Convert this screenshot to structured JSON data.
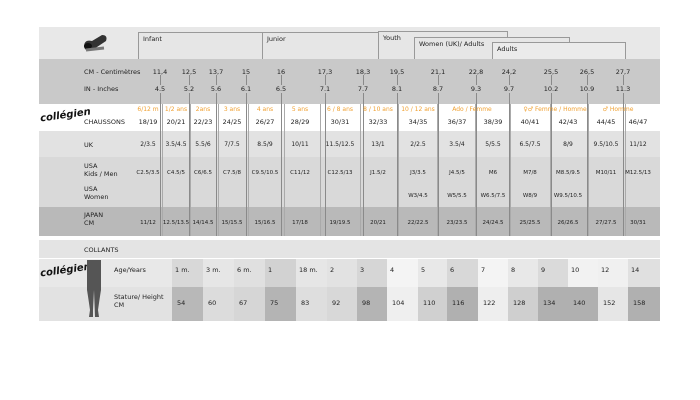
{
  "header": {
    "tabs": [
      "Infant",
      "Junior",
      "Youth",
      "Women (UK)/ Adults",
      "Adults"
    ]
  },
  "brand": {
    "logo_text": "collégien"
  },
  "rows": {
    "cm_label": "CM - Centimètres",
    "in_label": "IN - Inches",
    "chaussons_label": "CHAUSSONS",
    "uk_label": "UK",
    "usa_kids_label": [
      "USA",
      "Kids / Men"
    ],
    "usa_women_label": [
      "USA",
      "Women"
    ],
    "japan_label": [
      "JAPAN",
      "CM"
    ]
  },
  "cm": [
    "11,4",
    "12,5",
    "13,7",
    "15",
    "16",
    "17,3",
    "18,3",
    "19,5",
    "21,1",
    "22,8",
    "24,2",
    "25,5",
    "26,5",
    "27,7"
  ],
  "inches": [
    "4.5",
    "5.2",
    "5.6",
    "6.1",
    "6.5",
    "7.1",
    "7.7",
    "8.1",
    "8.7",
    "9.3",
    "9.7",
    "10.2",
    "10.9",
    "11.3"
  ],
  "ages": [
    "6/12  m",
    "1/2 ans",
    "2ans",
    "3 ans",
    "4 ans",
    "5 ans",
    "6 / 8 ans",
    "8 / 10 ans",
    "10 / 12 ans",
    "Ado / Femme",
    "♀♂ Femme / Homme",
    "♂ Homme"
  ],
  "chaussons": [
    "18/19",
    "20/21",
    "22/23",
    "24/25",
    "26/27",
    "28/29",
    "30/31",
    "32/33",
    "34/35",
    "36/37",
    "38/39",
    "40/41",
    "42/43",
    "44/45",
    "46/47"
  ],
  "uk": [
    "2/3.5",
    "3.5/4.5",
    "5.5/6",
    "7/7.5",
    "8.5/9",
    "10/11",
    "11.5/12.5",
    "13/1",
    "2/2.5",
    "3.5/4",
    "5/5.5",
    "6.5/7.5",
    "8/9",
    "9.5/10.5",
    "11/12"
  ],
  "usa_kids": [
    "C2.5/3.5",
    "C4.5/5",
    "C6/6.5",
    "C7.5/8",
    "C9.5/10.5",
    "C11/12",
    "C12.5/13",
    "J1.5/2",
    "J3/3.5",
    "J4.5/5",
    "M6",
    "M7/8",
    "M8.5/9.5",
    "M10/11",
    "M12.5/13"
  ],
  "usa_women": [
    "",
    "",
    "",
    "",
    "",
    "",
    "",
    "",
    "W3/4.5",
    "W5/5.5",
    "W6.5/7.5",
    "W8/9",
    "W9.5/10.5",
    "",
    ""
  ],
  "japan": [
    "11/12",
    "12.5/13.5",
    "14/14.5",
    "15/15.5",
    "15/16.5",
    "17/18",
    "19/19.5",
    "20/21",
    "22/22.5",
    "23/23.5",
    "24/24.5",
    "25/25.5",
    "26/26.5",
    "27/27.5",
    "30/31"
  ],
  "collants": {
    "title": "COLLANTS",
    "age_label": "Age/Years",
    "height_label": [
      "Stature/ Height",
      "CM"
    ],
    "ages": [
      "1 m.",
      "3 m.",
      "6 m.",
      "1",
      "18 m.",
      "2",
      "3",
      "4",
      "5",
      "6",
      "7",
      "8",
      "9",
      "10",
      "12",
      "14"
    ],
    "heights": [
      "54",
      "60",
      "67",
      "75",
      "83",
      "92",
      "98",
      "104",
      "110",
      "116",
      "122",
      "128",
      "134",
      "140",
      "152",
      "158"
    ]
  },
  "colors": {
    "accent": "#f0a030",
    "band_dark": "#b9b9b9",
    "band_mid": "#c9c9c9",
    "band_light": "#dcdcdc"
  }
}
